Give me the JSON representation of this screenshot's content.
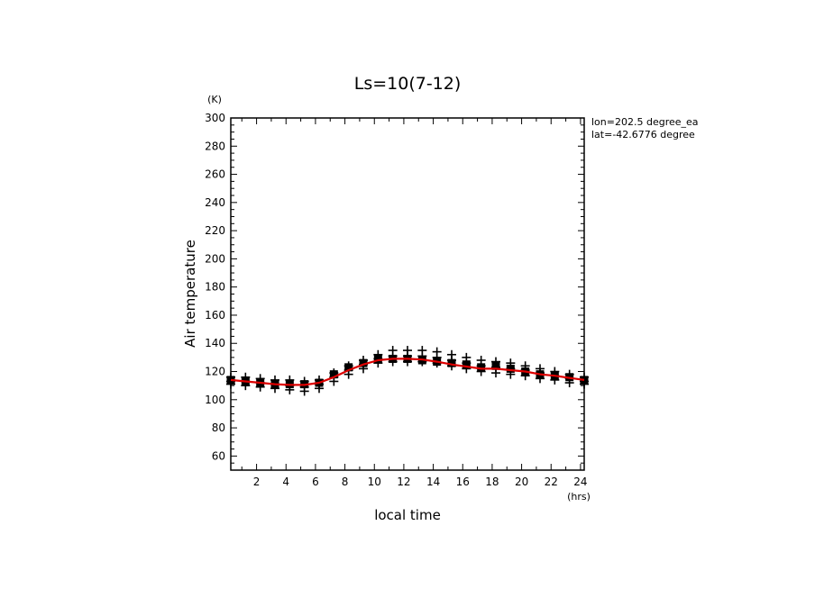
{
  "chart_data": {
    "type": "scatter",
    "title": "Ls=10(7-12)",
    "xlabel": "local time",
    "ylabel": "Air temperature",
    "x_unit": "(hrs)",
    "y_unit": "(K)",
    "xlim": [
      0.25,
      24.25
    ],
    "ylim": [
      50,
      300
    ],
    "x_ticks": [
      2,
      4,
      6,
      8,
      10,
      12,
      14,
      16,
      18,
      20,
      22,
      24
    ],
    "y_ticks": [
      60,
      80,
      100,
      120,
      140,
      160,
      180,
      200,
      220,
      240,
      260,
      280,
      300
    ],
    "annotations": [
      "lon=202.5 degree_ea",
      "lat=-42.6776 degree"
    ],
    "grid": false,
    "series": [
      {
        "marker": "plus",
        "color": "#000000",
        "x": [
          0.25,
          0.25,
          0.25,
          1.25,
          1.25,
          1.25,
          2.25,
          2.25,
          2.25,
          3.25,
          3.25,
          3.25,
          4.25,
          4.25,
          4.25,
          5.25,
          5.25,
          5.25,
          6.25,
          6.25,
          6.25,
          7.25,
          7.25,
          7.25,
          8.25,
          8.25,
          8.25,
          9.25,
          9.25,
          9.25,
          10.25,
          10.25,
          10.25,
          11.25,
          11.25,
          11.25,
          12.25,
          12.25,
          12.25,
          13.25,
          13.25,
          13.25,
          14.25,
          14.25,
          14.25,
          15.25,
          15.25,
          15.25,
          16.25,
          16.25,
          16.25,
          17.25,
          17.25,
          17.25,
          18.25,
          18.25,
          18.25,
          19.25,
          19.25,
          19.25,
          20.25,
          20.25,
          20.25,
          21.25,
          21.25,
          21.25,
          22.25,
          22.25,
          22.25,
          23.25,
          23.25,
          23.25,
          24.25,
          24.25,
          24.25
        ],
        "y": [
          116,
          113,
          111,
          116,
          113,
          110,
          115,
          112,
          109,
          114,
          111,
          108,
          114,
          110,
          107,
          113,
          109,
          106,
          114,
          111,
          108,
          119,
          116,
          113,
          124,
          121,
          118,
          128,
          125,
          122,
          132,
          129,
          126,
          135,
          131,
          127,
          135,
          131,
          127,
          135,
          131,
          127,
          134,
          130,
          126,
          132,
          128,
          124,
          130,
          126,
          122,
          128,
          124,
          120,
          127,
          123,
          119,
          126,
          122,
          118,
          124,
          121,
          117,
          122,
          119,
          115,
          120,
          117,
          114,
          118,
          115,
          112,
          116,
          113,
          111
        ]
      },
      {
        "marker": "square",
        "color": "#000000",
        "x": [
          0.25,
          1.25,
          2.25,
          3.25,
          4.25,
          5.25,
          6.25,
          7.25,
          8.25,
          9.25,
          10.25,
          11.25,
          12.25,
          13.25,
          14.25,
          15.25,
          16.25,
          17.25,
          18.25,
          19.25,
          20.25,
          21.25,
          22.25,
          23.25,
          24.25
        ],
        "y": [
          114,
          113,
          112,
          111,
          111,
          111,
          112,
          118,
          123,
          126,
          129,
          129,
          129,
          128,
          127,
          126,
          125,
          123,
          124,
          122,
          120,
          118,
          117,
          116,
          114
        ]
      },
      {
        "marker": "line",
        "color": "#dd0000",
        "x": [
          0.25,
          1.25,
          2.25,
          3.25,
          4.25,
          5.25,
          6.25,
          7.25,
          8.25,
          9.25,
          10.25,
          11.25,
          12.25,
          13.25,
          14.25,
          15.25,
          16.25,
          17.25,
          18.25,
          19.25,
          20.25,
          21.25,
          22.25,
          23.25,
          24.25
        ],
        "y": [
          114,
          113,
          112,
          111,
          110.5,
          110.5,
          112,
          116,
          121,
          125,
          128,
          129,
          129,
          128.5,
          127,
          125,
          123.5,
          122,
          122,
          121,
          120,
          118,
          117,
          115.5,
          114
        ]
      }
    ]
  }
}
